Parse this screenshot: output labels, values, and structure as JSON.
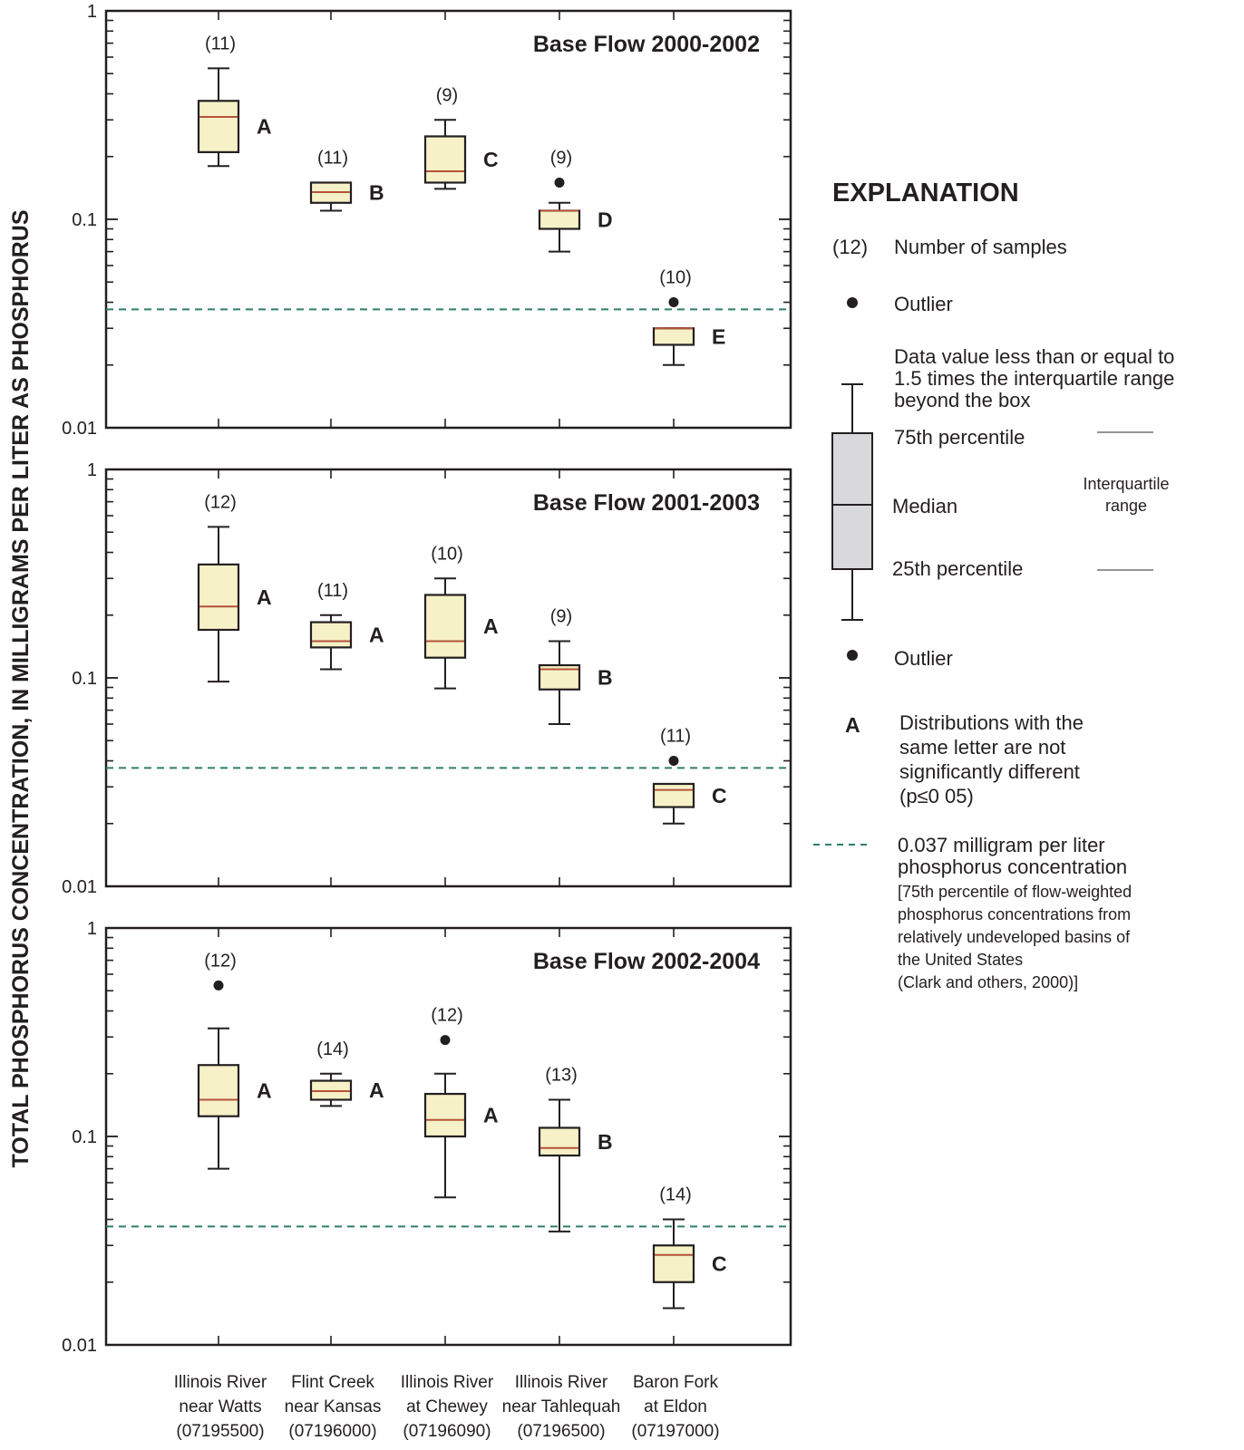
{
  "y_axis_label": "TOTAL PHOSPHORUS CONCENTRATION, IN MILLIGRAMS PER LITER AS PHOSPHORUS",
  "y_tick_labels": [
    "1",
    "0.1",
    "0.01"
  ],
  "x_category_labels": [
    [
      "Illinois River",
      "near Watts",
      "(07195500)"
    ],
    [
      "Flint Creek",
      "near Kansas",
      "(07196000)"
    ],
    [
      "Illinois River",
      "at Chewey",
      "(07196090)"
    ],
    [
      "Illinois River",
      "near Tahlequah",
      "(07196500)"
    ],
    [
      "Baron Fork",
      "at Eldon",
      "(07197000)"
    ]
  ],
  "colors": {
    "box_fill": "#f7f1c8",
    "median": "#b5523b",
    "reference_line": "#2e7d6b",
    "axis": "#231f20",
    "legend_box": "#d9d9dc"
  },
  "chart_data": [
    {
      "type": "box",
      "title": "Base Flow 2000-2002",
      "yscale": "log",
      "ylim": [
        0.01,
        1
      ],
      "reference_line": 0.037,
      "categories": [
        "Illinois River near Watts",
        "Flint Creek near Kansas",
        "Illinois River at Chewey",
        "Illinois River near Tahlequah",
        "Baron Fork at Eldon"
      ],
      "boxes": [
        {
          "n": "(11)",
          "letter": "A",
          "whisker_low": 0.18,
          "q1": 0.21,
          "median": 0.31,
          "q3": 0.37,
          "whisker_high": 0.53,
          "outliers": []
        },
        {
          "n": "(11)",
          "letter": "B",
          "whisker_low": 0.11,
          "q1": 0.12,
          "median": 0.135,
          "q3": 0.15,
          "whisker_high": 0.15,
          "outliers": []
        },
        {
          "n": "(9)",
          "letter": "C",
          "whisker_low": 0.14,
          "q1": 0.15,
          "median": 0.17,
          "q3": 0.25,
          "whisker_high": 0.3,
          "outliers": []
        },
        {
          "n": "(9)",
          "letter": "D",
          "whisker_low": 0.07,
          "q1": 0.09,
          "median": 0.11,
          "q3": 0.11,
          "whisker_high": 0.12,
          "outliers": [
            0.15
          ]
        },
        {
          "n": "(10)",
          "letter": "E",
          "whisker_low": 0.02,
          "q1": 0.025,
          "median": 0.03,
          "q3": 0.03,
          "whisker_high": 0.03,
          "outliers": [
            0.04
          ]
        }
      ]
    },
    {
      "type": "box",
      "title": "Base Flow 2001-2003",
      "yscale": "log",
      "ylim": [
        0.01,
        1
      ],
      "reference_line": 0.037,
      "categories": [
        "Illinois River near Watts",
        "Flint Creek near Kansas",
        "Illinois River at Chewey",
        "Illinois River near Tahlequah",
        "Baron Fork at Eldon"
      ],
      "boxes": [
        {
          "n": "(12)",
          "letter": "A",
          "whisker_low": 0.096,
          "q1": 0.17,
          "median": 0.22,
          "q3": 0.35,
          "whisker_high": 0.53,
          "outliers": []
        },
        {
          "n": "(11)",
          "letter": "A",
          "whisker_low": 0.11,
          "q1": 0.14,
          "median": 0.15,
          "q3": 0.185,
          "whisker_high": 0.2,
          "outliers": []
        },
        {
          "n": "(10)",
          "letter": "A",
          "whisker_low": 0.089,
          "q1": 0.125,
          "median": 0.15,
          "q3": 0.25,
          "whisker_high": 0.3,
          "outliers": []
        },
        {
          "n": "(9)",
          "letter": "B",
          "whisker_low": 0.06,
          "q1": 0.088,
          "median": 0.11,
          "q3": 0.115,
          "whisker_high": 0.15,
          "outliers": []
        },
        {
          "n": "(11)",
          "letter": "C",
          "whisker_low": 0.02,
          "q1": 0.024,
          "median": 0.029,
          "q3": 0.031,
          "whisker_high": 0.031,
          "outliers": [
            0.04
          ]
        }
      ]
    },
    {
      "type": "box",
      "title": "Base Flow 2002-2004",
      "yscale": "log",
      "ylim": [
        0.01,
        1
      ],
      "reference_line": 0.037,
      "categories": [
        "Illinois River near Watts",
        "Flint Creek near Kansas",
        "Illinois River at Chewey",
        "Illinois River near Tahlequah",
        "Baron Fork at Eldon"
      ],
      "boxes": [
        {
          "n": "(12)",
          "letter": "A",
          "whisker_low": 0.07,
          "q1": 0.125,
          "median": 0.15,
          "q3": 0.22,
          "whisker_high": 0.33,
          "outliers": [
            0.53
          ]
        },
        {
          "n": "(14)",
          "letter": "A",
          "whisker_low": 0.14,
          "q1": 0.15,
          "median": 0.165,
          "q3": 0.185,
          "whisker_high": 0.2,
          "outliers": []
        },
        {
          "n": "(12)",
          "letter": "A",
          "whisker_low": 0.051,
          "q1": 0.1,
          "median": 0.12,
          "q3": 0.16,
          "whisker_high": 0.2,
          "outliers": [
            0.29
          ]
        },
        {
          "n": "(13)",
          "letter": "B",
          "whisker_low": 0.035,
          "q1": 0.081,
          "median": 0.088,
          "q3": 0.11,
          "whisker_high": 0.15,
          "outliers": []
        },
        {
          "n": "(14)",
          "letter": "C",
          "whisker_low": 0.015,
          "q1": 0.02,
          "median": 0.027,
          "q3": 0.03,
          "whisker_high": 0.04,
          "outliers": []
        }
      ]
    }
  ],
  "legend": {
    "heading": "EXPLANATION",
    "samples_symbol": "(12)",
    "samples_text": "Number of samples",
    "outlier_text": "Outlier",
    "whisker_text": [
      "Data value less than or equal to",
      "1.5 times the interquartile range",
      "beyond the box"
    ],
    "p75_text": "75th percentile",
    "median_text": "Median",
    "p25_text": "25th percentile",
    "iqr_text": [
      "Interquartile",
      "range"
    ],
    "letter_symbol": "A",
    "letter_text": [
      "Distributions with the",
      "same letter are not",
      "significantly different",
      "(p≤0 05)"
    ],
    "line_text": [
      "0.037 milligram per liter",
      "phosphorus concentration"
    ],
    "line_note": [
      "[75th percentile of flow-weighted",
      "phosphorus concentrations from",
      "relatively undeveloped basins of",
      "the United States",
      "(Clark and others, 2000)]"
    ]
  }
}
